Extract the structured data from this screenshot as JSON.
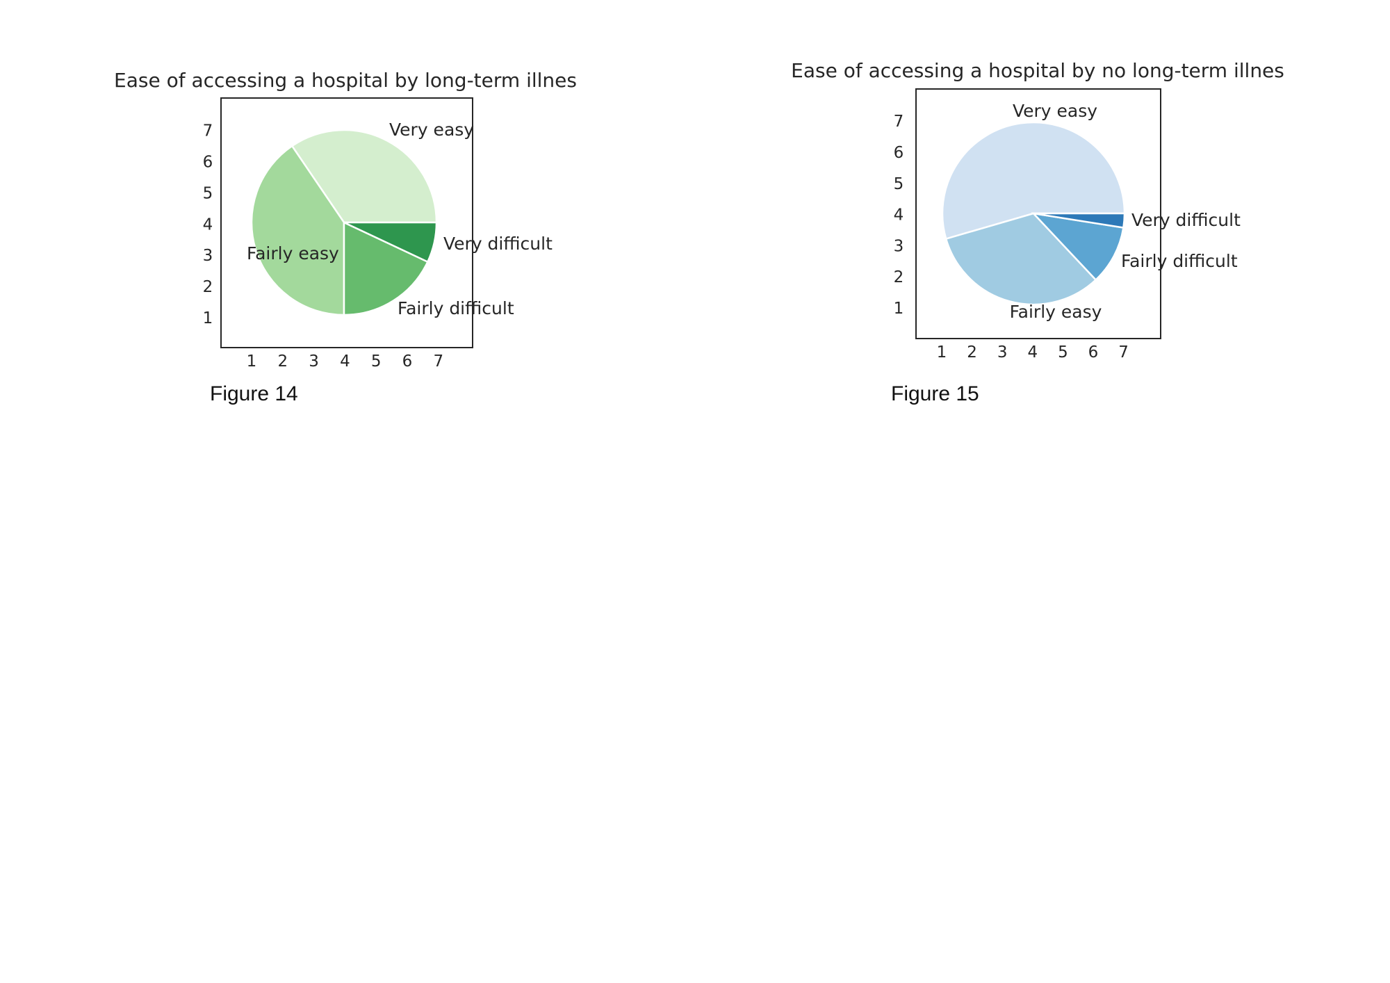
{
  "chart_data": [
    {
      "type": "pie",
      "title": "Ease of accessing a hospital by long-term illnes",
      "categories": [
        "Very easy",
        "Fairly easy",
        "Fairly difficult",
        "Very difficult"
      ],
      "values": [
        34.5,
        40.5,
        18,
        7
      ],
      "start_angle_deg": 0,
      "direction": "counterclockwise",
      "colors": [
        "#d4eece",
        "#a3d99c",
        "#66bb6d",
        "#2e964e"
      ],
      "x_ticks": [
        "1",
        "2",
        "3",
        "4",
        "5",
        "6",
        "7"
      ],
      "y_ticks": [
        "1",
        "2",
        "3",
        "4",
        "5",
        "6",
        "7"
      ],
      "caption": "Figure 14"
    },
    {
      "type": "pie",
      "title": "Ease of accessing a hospital by no long-term illnes",
      "categories": [
        "Very easy",
        "Fairly easy",
        "Fairly difficult",
        "Very difficult"
      ],
      "values": [
        54.5,
        32.5,
        10.5,
        2.5
      ],
      "start_angle_deg": 0,
      "direction": "counterclockwise",
      "colors": [
        "#d0e1f2",
        "#a0cbe2",
        "#5ca5d2",
        "#2d79b8"
      ],
      "x_ticks": [
        "1",
        "2",
        "3",
        "4",
        "5",
        "6",
        "7"
      ],
      "y_ticks": [
        "1",
        "2",
        "3",
        "4",
        "5",
        "6",
        "7"
      ],
      "caption": "Figure 15"
    }
  ]
}
